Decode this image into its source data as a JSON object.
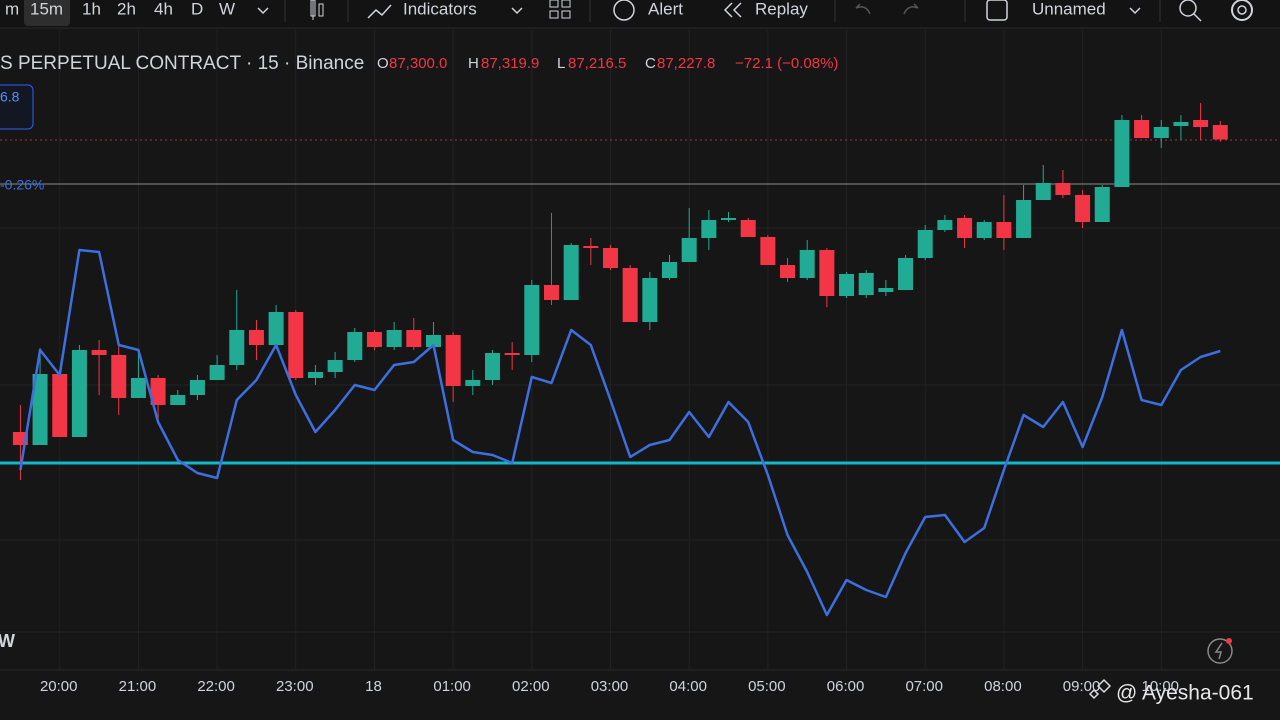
{
  "toolbar": {
    "intervals": [
      "15m",
      "1h",
      "2h",
      "4h",
      "D",
      "W"
    ],
    "indicators": "Indicators",
    "alert": "Alert",
    "replay": "Replay",
    "layout": "Unnamed"
  },
  "legend": {
    "symbol": "S PERPETUAL CONTRACT · 15 · Binance",
    "o_key": "O",
    "o": "87,300.0",
    "h_key": "H",
    "h": "87,319.9",
    "l_key": "L",
    "l": "87,216.5",
    "c_key": "C",
    "c": "87,227.8",
    "change": "−72.1 (−0.08%)"
  },
  "side_label": "6.8",
  "side_change": "-0.26%",
  "pane_label": "W",
  "watermark": "@ Ayesha-061",
  "chart_data": {
    "type": "candlestick",
    "categories": [
      null,
      null,
      "20:00",
      null,
      null,
      null,
      "21:00",
      null,
      null,
      null,
      "22:00",
      null,
      null,
      null,
      "23:00",
      null,
      null,
      null,
      "18",
      null,
      null,
      null,
      "01:00",
      null,
      null,
      null,
      "02:00",
      null,
      null,
      null,
      "03:00",
      null,
      null,
      null,
      "04:00",
      null,
      null,
      null,
      "05:00",
      null,
      null,
      null,
      "06:00",
      null,
      null,
      null,
      "07:00",
      null,
      null,
      null,
      "08:00",
      null,
      null,
      null,
      "09:00",
      null,
      null,
      null,
      "10:00",
      null,
      null,
      null
    ],
    "open": [
      85765,
      85700,
      86055,
      85740,
      86175,
      86150,
      85935,
      86035,
      85900,
      85950,
      86025,
      86100,
      86275,
      86200,
      86365,
      86035,
      86065,
      86125,
      86265,
      86190,
      86275,
      86190,
      86250,
      85995,
      86025,
      86160,
      86150,
      86500,
      86425,
      86695,
      86685,
      86585,
      86315,
      86535,
      86615,
      86735,
      86825,
      86825,
      86740,
      86600,
      86535,
      86675,
      86445,
      86450,
      86465,
      86475,
      86635,
      86775,
      86835,
      86735,
      86815,
      86735,
      86925,
      87010,
      86950,
      86815,
      86990,
      87325,
      87235,
      87295,
      87325,
      87300
    ],
    "high": [
      85900,
      86185,
      86075,
      86200,
      86225,
      86200,
      86175,
      86050,
      85975,
      86050,
      86150,
      86475,
      86325,
      86400,
      86375,
      86100,
      86165,
      86285,
      86275,
      86315,
      86335,
      86315,
      86265,
      86075,
      86175,
      86215,
      86525,
      86860,
      86710,
      86735,
      86700,
      86600,
      86565,
      86650,
      86885,
      86875,
      86865,
      86835,
      86750,
      86635,
      86725,
      86685,
      86565,
      86575,
      86525,
      86650,
      86800,
      86850,
      86850,
      86825,
      86950,
      87000,
      87100,
      87075,
      86975,
      87000,
      87350,
      87350,
      87325,
      87350,
      87410,
      87319.9
    ],
    "low": [
      85525,
      85700,
      85740,
      85740,
      85950,
      85850,
      85935,
      85825,
      85900,
      85925,
      86025,
      86075,
      86125,
      86200,
      86025,
      86000,
      86035,
      86115,
      86175,
      86175,
      86175,
      86175,
      85915,
      85950,
      86000,
      86075,
      86115,
      86400,
      86425,
      86600,
      86575,
      86315,
      86275,
      86525,
      86615,
      86675,
      86815,
      86740,
      86600,
      86515,
      86525,
      86390,
      86435,
      86435,
      86445,
      86475,
      86625,
      86765,
      86685,
      86725,
      86675,
      86735,
      86925,
      86935,
      86785,
      86815,
      86990,
      87235,
      87185,
      87225,
      87225,
      87216.5
    ],
    "close": [
      85700,
      86055,
      85740,
      86175,
      86150,
      85935,
      86035,
      85900,
      85950,
      86025,
      86100,
      86275,
      86200,
      86365,
      86035,
      86065,
      86125,
      86265,
      86190,
      86275,
      86190,
      86250,
      85995,
      86025,
      86160,
      86150,
      86500,
      86425,
      86700,
      86685,
      86585,
      86315,
      86535,
      86615,
      86735,
      86825,
      86835,
      86740,
      86600,
      86535,
      86675,
      86445,
      86555,
      86560,
      86485,
      86635,
      86775,
      86825,
      86735,
      86815,
      86735,
      86925,
      87010,
      86950,
      86815,
      86990,
      87325,
      87235,
      87290,
      87315,
      87290,
      87227.8
    ],
    "line": {
      "color": "#3d6fe0",
      "values": [
        85575,
        86175,
        86050,
        86675,
        86665,
        86200,
        86175,
        85815,
        85625,
        85560,
        85535,
        85925,
        86025,
        86200,
        85950,
        85765,
        85875,
        86000,
        85975,
        86100,
        86115,
        86200,
        85725,
        85665,
        85650,
        85610,
        86040,
        86010,
        86275,
        86200,
        85925,
        85640,
        85700,
        85725,
        85865,
        85740,
        85915,
        85815,
        85550,
        85250,
        85065,
        84850,
        85025,
        84975,
        84940,
        85160,
        85340,
        85350,
        85215,
        85285,
        85575,
        85850,
        85790,
        85915,
        85690,
        85940,
        86275,
        85925,
        85900,
        86075,
        86140,
        86170
      ]
    },
    "hlines": [
      {
        "value": 85610,
        "color": "#12b8c8"
      },
      {
        "value": 87005,
        "color": "#8a8a8a"
      },
      {
        "value": 87225,
        "color": "#9b3a3a"
      }
    ],
    "up_color": "#22ab94",
    "down_color": "#f23645",
    "ylim": [
      84575,
      87725
    ]
  }
}
